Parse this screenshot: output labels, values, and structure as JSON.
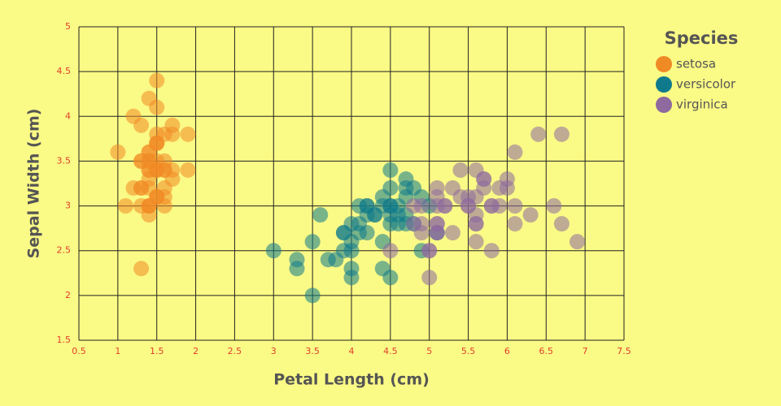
{
  "chart_data": {
    "type": "scatter",
    "x_label": "Petal Length (cm)",
    "y_label": "Sepal Width (cm)",
    "legend_title": "Species",
    "legend_position": "right",
    "grid": true,
    "xlim": [
      0.5,
      7.5
    ],
    "xticks": [
      0.5,
      1,
      1.5,
      2,
      2.5,
      3,
      3.5,
      4,
      4.5,
      5,
      5.5,
      6,
      6.5,
      7,
      7.5
    ],
    "ylim": [
      1.5,
      5
    ],
    "yticks": [
      1.5,
      2,
      2.5,
      3,
      3.5,
      4,
      4.5,
      5
    ],
    "series": [
      {
        "name": "setosa",
        "color": "#f08a24",
        "x": [
          1.4,
          1.4,
          1.3,
          1.5,
          1.4,
          1.7,
          1.4,
          1.5,
          1.4,
          1.5,
          1.5,
          1.6,
          1.4,
          1.1,
          1.2,
          1.5,
          1.3,
          1.4,
          1.7,
          1.5,
          1.7,
          1.5,
          1,
          1.7,
          1.9,
          1.6,
          1.6,
          1.5,
          1.4,
          1.6,
          1.6,
          1.5,
          1.5,
          1.4,
          1.5,
          1.2,
          1.3,
          1.4,
          1.3,
          1.5,
          1.3,
          1.3,
          1.3,
          1.6,
          1.9,
          1.4,
          1.6,
          1.4,
          1.5,
          1.4
        ],
        "values": [
          3.5,
          3,
          3.2,
          3.1,
          3.6,
          3.9,
          3.4,
          3.4,
          2.9,
          3.1,
          3.7,
          3.4,
          3,
          3,
          4,
          4.4,
          3.9,
          3.5,
          3.8,
          3.8,
          3.4,
          3.7,
          3.6,
          3.3,
          3.4,
          3,
          3.4,
          3.5,
          3.4,
          3.2,
          3.1,
          3.4,
          4.1,
          4.2,
          3.1,
          3.2,
          3.5,
          3.6,
          3,
          3.4,
          3.5,
          2.3,
          3.2,
          3.5,
          3.8,
          3,
          3.8,
          3.2,
          3.7,
          3.3
        ]
      },
      {
        "name": "versicolor",
        "color": "#0f7a8c",
        "x": [
          4.7,
          4.5,
          4.9,
          4,
          4.6,
          4.5,
          4.7,
          3.3,
          4.6,
          3.9,
          3.5,
          4.2,
          4,
          4.7,
          3.6,
          4.4,
          4.5,
          4.1,
          4.5,
          3.9,
          4.8,
          4,
          4.9,
          4.7,
          4.3,
          4.4,
          4.8,
          5,
          4.5,
          3.5,
          3.8,
          3.7,
          3.9,
          5.1,
          4.5,
          4.5,
          4.7,
          4.4,
          4.1,
          4,
          4.4,
          4.6,
          4,
          3.3,
          4.2,
          4.2,
          4.2,
          4.3,
          3,
          4.1
        ],
        "values": [
          3.2,
          3.2,
          3.1,
          2.3,
          2.8,
          2.8,
          3.3,
          2.4,
          2.9,
          2.7,
          2,
          3,
          2.2,
          2.9,
          2.9,
          3.1,
          3,
          2.7,
          2.2,
          2.5,
          3.2,
          2.8,
          2.5,
          2.8,
          2.9,
          3,
          2.8,
          3,
          2.9,
          2.6,
          2.4,
          2.4,
          2.7,
          2.7,
          3,
          3.4,
          3.1,
          2.3,
          3,
          2.5,
          2.6,
          3,
          2.6,
          2.3,
          2.7,
          3,
          2.9,
          2.9,
          2.5,
          2.8
        ]
      },
      {
        "name": "virginica",
        "color": "#8e6a9e",
        "x": [
          6,
          5.1,
          5.9,
          5.6,
          5.8,
          6.6,
          4.5,
          6.3,
          5.8,
          6.1,
          5.1,
          5.3,
          5.5,
          5,
          5.1,
          5.3,
          5.5,
          6.7,
          6.9,
          5,
          5.7,
          4.9,
          6.7,
          4.9,
          5.7,
          6,
          4.8,
          4.9,
          5.6,
          5.8,
          6.1,
          6.4,
          5.6,
          5.1,
          5.6,
          6.1,
          5.6,
          5.5,
          4.8,
          5.4,
          5.6,
          5.1,
          5.1,
          5.9,
          5.7,
          5.2,
          5,
          5.2,
          5.4,
          5.1
        ],
        "values": [
          3.3,
          2.7,
          3,
          2.9,
          3,
          3,
          2.5,
          2.9,
          2.5,
          3.6,
          3.2,
          2.7,
          3,
          2.5,
          2.8,
          3.2,
          3,
          3.8,
          2.6,
          2.2,
          3.2,
          2.8,
          2.8,
          2.7,
          3.3,
          3.2,
          2.8,
          3,
          2.8,
          3,
          2.8,
          3.8,
          2.8,
          2.8,
          2.6,
          3,
          3.4,
          3.1,
          3,
          3.1,
          3.1,
          3.1,
          2.7,
          3.2,
          3.3,
          3,
          2.5,
          3,
          3.4,
          3
        ]
      }
    ]
  }
}
